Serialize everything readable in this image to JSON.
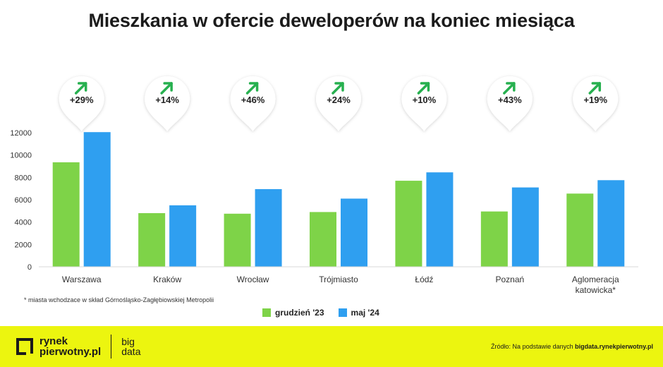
{
  "title": "Mieszkania w ofercie deweloperów na koniec miesiąca",
  "footnote": "* miasta wchodzace w skład Górnośląsko-Zagłębiowskiej Metropolii",
  "source_prefix": "Źródło: Na podstawie danych",
  "source_site": "bigdata.rynekpierwotny.pl",
  "logo": {
    "line1": "rynek",
    "line2": "pierwotny.pl",
    "big": "big",
    "data": "data"
  },
  "colors": {
    "green": "#7ed348",
    "blue": "#2f9ff0",
    "footer": "#ecf50f",
    "arrow": "#27b04f"
  },
  "chart_data": {
    "type": "bar",
    "categories": [
      "Warszawa",
      "Kraków",
      "Wrocław",
      "Trójmiasto",
      "Łódź",
      "Poznań",
      "Aglomeracja katowicka*"
    ],
    "category_lines": [
      [
        "Warszawa"
      ],
      [
        "Kraków"
      ],
      [
        "Wrocław"
      ],
      [
        "Trójmiasto"
      ],
      [
        "Łódź"
      ],
      [
        "Poznań"
      ],
      [
        "Aglomeracja",
        "katowicka*"
      ]
    ],
    "series": [
      {
        "name": "grudzień '23",
        "color": "#7ed348",
        "values": [
          9350,
          4800,
          4750,
          4900,
          7700,
          4950,
          6550
        ]
      },
      {
        "name": "maj '24",
        "color": "#2f9ff0",
        "values": [
          12050,
          5500,
          6950,
          6100,
          8450,
          7100,
          7750
        ]
      }
    ],
    "changes": [
      "+29%",
      "+14%",
      "+46%",
      "+24%",
      "+10%",
      "+43%",
      "+19%"
    ],
    "ylim": [
      0,
      12000
    ],
    "yticks": [
      0,
      2000,
      4000,
      6000,
      8000,
      10000,
      12000
    ],
    "legend": "bottom-center",
    "grid": false
  }
}
